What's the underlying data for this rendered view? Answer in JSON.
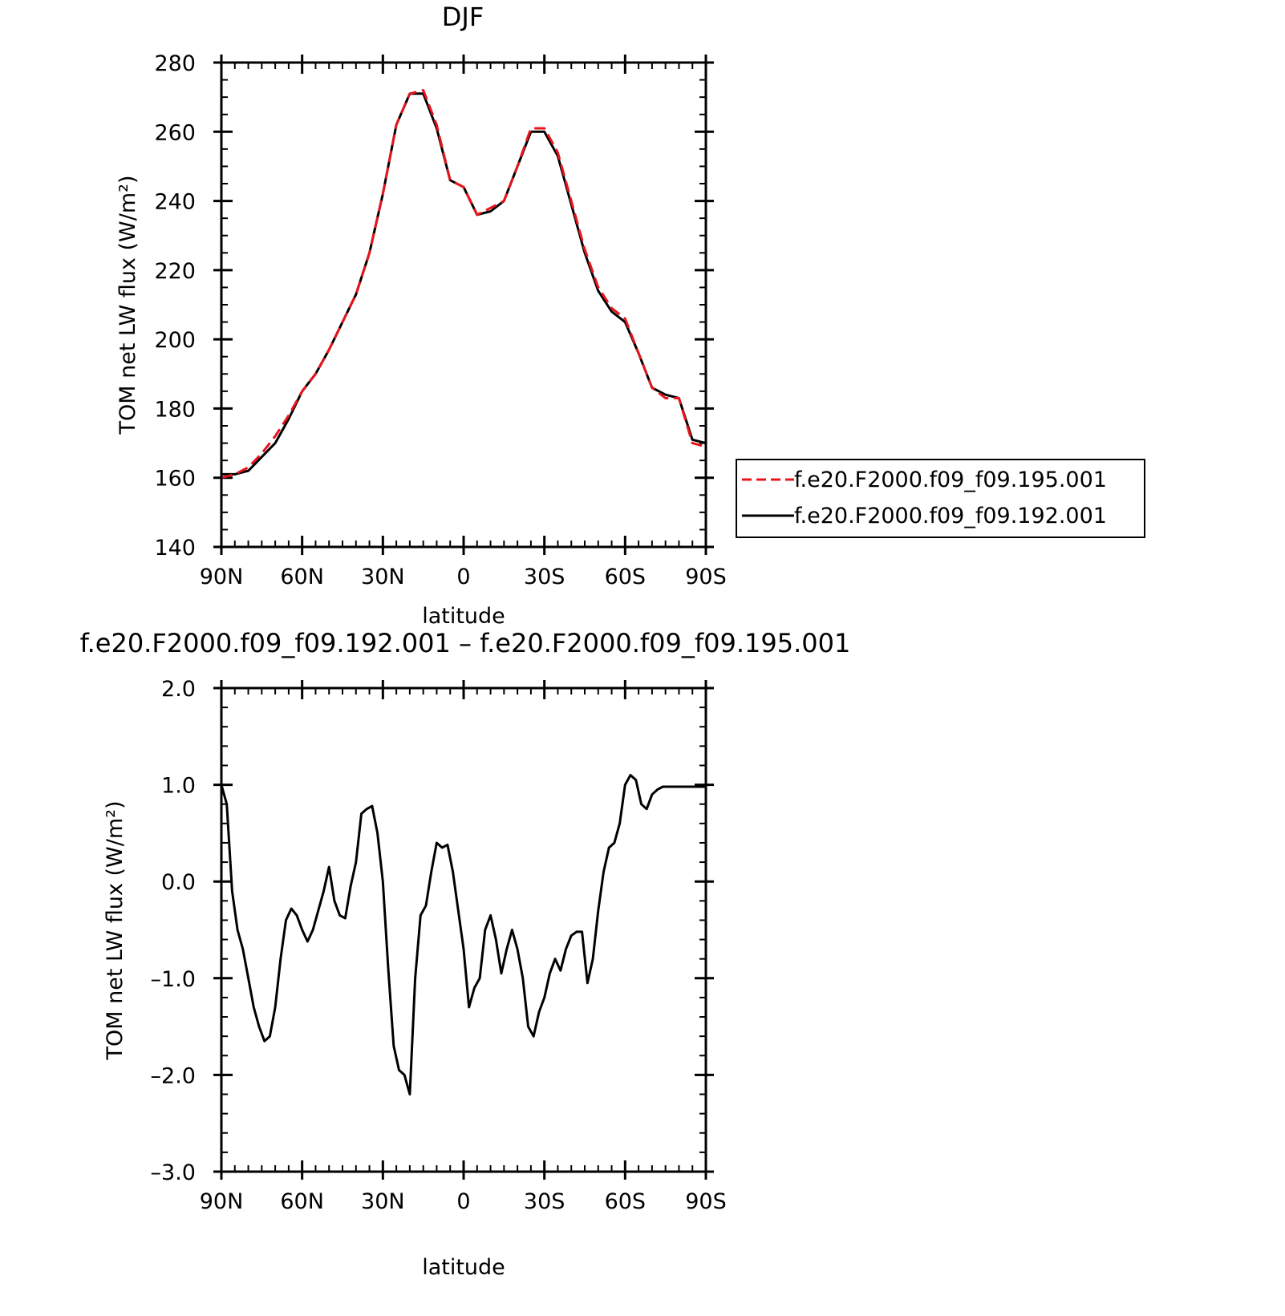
{
  "chart_data": [
    {
      "type": "line",
      "title": "DJF",
      "xlabel": "latitude",
      "ylabel": "TOM net LW flux (W/m²)",
      "xlim": [
        90,
        -90
      ],
      "ylim": [
        140,
        280
      ],
      "x_major_ticks": [
        90,
        60,
        30,
        0,
        -30,
        -60,
        -90
      ],
      "x_tick_labels": [
        "90N",
        "60N",
        "30N",
        "0",
        "30S",
        "60S",
        "90S"
      ],
      "y_major_ticks": [
        140,
        160,
        180,
        200,
        220,
        240,
        260,
        280
      ],
      "y_tick_labels": [
        "140",
        "160",
        "180",
        "200",
        "220",
        "240",
        "260",
        "280"
      ],
      "grid": false,
      "legend_position": "right",
      "x": [
        90,
        85,
        80,
        75,
        70,
        65,
        60,
        55,
        50,
        45,
        40,
        35,
        30,
        25,
        20,
        15,
        10,
        5,
        0,
        -5,
        -10,
        -15,
        -20,
        -25,
        -30,
        -35,
        -40,
        -45,
        -50,
        -55,
        -60,
        -65,
        -70,
        -75,
        -80,
        -85,
        -90
      ],
      "series": [
        {
          "name": "f.e20.F2000.f09_f09.195.001",
          "color": "#e8141c",
          "dash": "dashed",
          "values": [
            160,
            161,
            163,
            167,
            172,
            178,
            185,
            190,
            197,
            205,
            213,
            225,
            242,
            262,
            271,
            272,
            262,
            246,
            244,
            236,
            238,
            240,
            250,
            261,
            261,
            254,
            240,
            226,
            215,
            209,
            206,
            196,
            186,
            183,
            183,
            170,
            169
          ]
        },
        {
          "name": "f.e20.F2000.f09_f09.192.001",
          "color": "#000000",
          "dash": "solid",
          "values": [
            161,
            161,
            162,
            166,
            170,
            177,
            185,
            190,
            197,
            205,
            213,
            225,
            242,
            262,
            271,
            271,
            261,
            246,
            244,
            236,
            237,
            240,
            250,
            260,
            260,
            253,
            239,
            225,
            214,
            208,
            205,
            196,
            186,
            184,
            183,
            171,
            170
          ]
        }
      ]
    },
    {
      "type": "line",
      "title": "f.e20.F2000.f09_f09.192.001 – f.e20.F2000.f09_f09.195.001",
      "xlabel": "latitude",
      "ylabel": "TOM net LW flux (W/m²)",
      "xlim": [
        90,
        -90
      ],
      "ylim": [
        -3.0,
        2.0
      ],
      "x_major_ticks": [
        90,
        60,
        30,
        0,
        -30,
        -60,
        -90
      ],
      "x_tick_labels": [
        "90N",
        "60N",
        "30N",
        "0",
        "30S",
        "60S",
        "90S"
      ],
      "y_major_ticks": [
        -3.0,
        -2.0,
        -1.0,
        0.0,
        1.0,
        2.0
      ],
      "y_tick_labels": [
        "–3.0",
        "–2.0",
        "–1.0",
        "0.0",
        "1.0",
        "2.0"
      ],
      "grid": false,
      "x": [
        90,
        88,
        86,
        84,
        82,
        80,
        78,
        76,
        74,
        72,
        70,
        68,
        66,
        64,
        62,
        60,
        58,
        56,
        54,
        52,
        50,
        48,
        46,
        44,
        42,
        40,
        38,
        36,
        34,
        32,
        30,
        28,
        26,
        24,
        22,
        20,
        18,
        16,
        14,
        12,
        10,
        8,
        6,
        4,
        2,
        0,
        -2,
        -4,
        -6,
        -8,
        -10,
        -12,
        -14,
        -16,
        -18,
        -20,
        -22,
        -24,
        -26,
        -28,
        -30,
        -32,
        -34,
        -36,
        -38,
        -40,
        -42,
        -44,
        -46,
        -48,
        -50,
        -52,
        -54,
        -56,
        -58,
        -60,
        -62,
        -64,
        -66,
        -68,
        -70,
        -72,
        -74,
        -76,
        -78,
        -80,
        -82,
        -84,
        -86,
        -88,
        -90
      ],
      "series": [
        {
          "name": "",
          "color": "#000000",
          "dash": "solid",
          "values": [
            1.0,
            0.8,
            -0.1,
            -0.5,
            -0.7,
            -1.0,
            -1.3,
            -1.5,
            -1.65,
            -1.6,
            -1.3,
            -0.8,
            -0.4,
            -0.28,
            -0.35,
            -0.5,
            -0.62,
            -0.5,
            -0.3,
            -0.1,
            0.15,
            -0.2,
            -0.35,
            -0.38,
            -0.05,
            0.2,
            0.7,
            0.75,
            0.78,
            0.5,
            0.0,
            -0.9,
            -1.7,
            -1.95,
            -2.0,
            -2.2,
            -1.0,
            -0.35,
            -0.25,
            0.1,
            0.4,
            0.35,
            0.38,
            0.1,
            -0.3,
            -0.7,
            -1.3,
            -1.1,
            -1.0,
            -0.5,
            -0.35,
            -0.6,
            -0.95,
            -0.7,
            -0.5,
            -0.7,
            -1.0,
            -1.5,
            -1.6,
            -1.35,
            -1.2,
            -0.95,
            -0.8,
            -0.92,
            -0.7,
            -0.56,
            -0.52,
            -0.52,
            -1.05,
            -0.8,
            -0.3,
            0.1,
            0.35,
            0.4,
            0.6,
            1.0,
            1.1,
            1.05,
            0.8,
            0.75,
            0.9,
            0.95,
            0.98,
            0.98,
            0.98,
            0.98,
            0.98,
            0.98,
            0.98,
            0.98,
            0.98
          ]
        }
      ]
    }
  ]
}
